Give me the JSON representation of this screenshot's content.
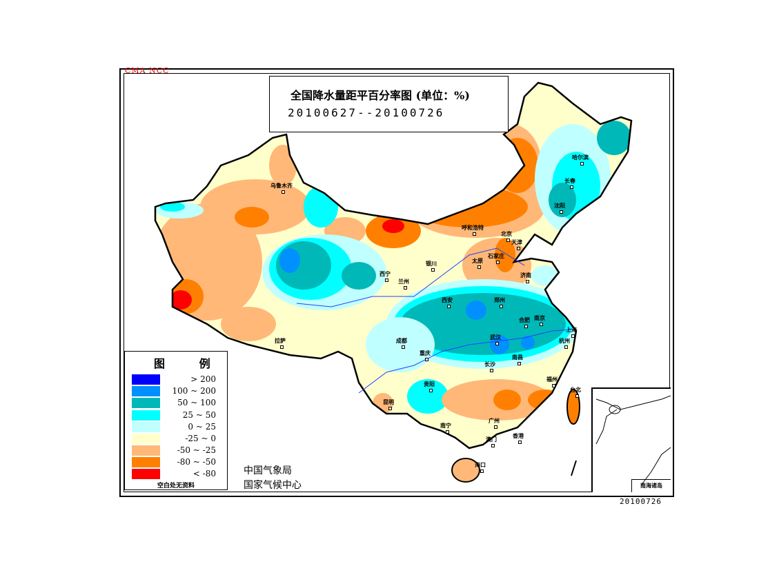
{
  "header": {
    "watermark": "CMA NCC",
    "title": "全国降水量距平百分率图 (单位：%)",
    "period": "20100627--20100726"
  },
  "legend": {
    "title": "图 例",
    "items": [
      {
        "label": "> 200",
        "color": "#0000ff"
      },
      {
        "label": "100 ~ 200",
        "color": "#0090ff"
      },
      {
        "label": "50 ~ 100",
        "color": "#00b8b8"
      },
      {
        "label": "25 ~ 50",
        "color": "#00ffff"
      },
      {
        "label": "0 ~ 25",
        "color": "#c0ffff"
      },
      {
        "label": "-25 ~ 0",
        "color": "#ffffcc"
      },
      {
        "label": "-50 ~ -25",
        "color": "#ffb878"
      },
      {
        "label": "-80 ~ -50",
        "color": "#ff8000"
      },
      {
        "label": "< -80",
        "color": "#ff0000"
      }
    ],
    "note": "空白处无资料"
  },
  "agency": {
    "line1": "中国气象局",
    "line2": "国家气候中心"
  },
  "inset": {
    "label": "南海诸岛"
  },
  "date_stamp": "20100726",
  "cities": [
    "乌鲁木齐",
    "拉萨",
    "西宁",
    "兰州",
    "银川",
    "呼和浩特",
    "北京",
    "天津",
    "石家庄",
    "太原",
    "济南",
    "郑州",
    "西安",
    "合肥",
    "南京",
    "上海",
    "杭州",
    "武汉",
    "南昌",
    "长沙",
    "成都",
    "重庆",
    "贵阳",
    "昆明",
    "南宁",
    "广州",
    "澳门",
    "香港",
    "海口",
    "福州",
    "台北",
    "长春",
    "沈阳",
    "哈尔滨"
  ]
}
